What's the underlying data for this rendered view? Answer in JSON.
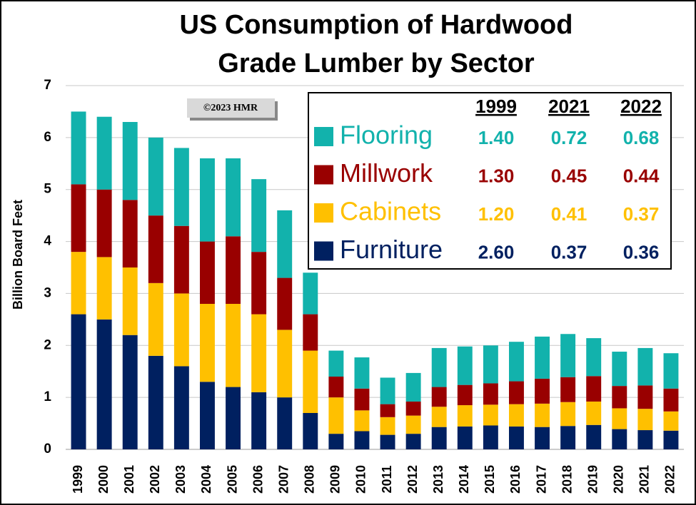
{
  "chart_data": {
    "type": "stacked_bar",
    "title": "US Consumption of Hardwood Grade Lumber by Sector",
    "y_label": "Billion Board Feet",
    "annotation": "©2023 HMR",
    "categories": [
      "1999",
      "2000",
      "2001",
      "2002",
      "2003",
      "2004",
      "2005",
      "2006",
      "2007",
      "2008",
      "2009",
      "2010",
      "2011",
      "2012",
      "2013",
      "2014",
      "2015",
      "2016",
      "2017",
      "2018",
      "2019",
      "2020",
      "2021",
      "2022"
    ],
    "series": [
      {
        "name": "Furniture",
        "color": "#002060",
        "values": [
          2.6,
          2.5,
          2.2,
          1.8,
          1.6,
          1.3,
          1.2,
          1.1,
          1.0,
          0.7,
          0.3,
          0.35,
          0.28,
          0.3,
          0.43,
          0.44,
          0.46,
          0.44,
          0.43,
          0.45,
          0.47,
          0.39,
          0.37,
          0.36
        ],
        "table_values": [
          "2.60",
          "0.37",
          "0.36"
        ]
      },
      {
        "name": "Cabinets",
        "color": "#ffc000",
        "values": [
          1.2,
          1.2,
          1.3,
          1.4,
          1.4,
          1.5,
          1.6,
          1.5,
          1.3,
          1.2,
          0.7,
          0.4,
          0.34,
          0.35,
          0.39,
          0.41,
          0.4,
          0.43,
          0.45,
          0.46,
          0.45,
          0.4,
          0.41,
          0.37
        ],
        "table_values": [
          "1.20",
          "0.41",
          "0.37"
        ]
      },
      {
        "name": "Millwork",
        "color": "#990000",
        "values": [
          1.3,
          1.3,
          1.3,
          1.3,
          1.3,
          1.2,
          1.3,
          1.2,
          1.0,
          0.7,
          0.4,
          0.42,
          0.25,
          0.27,
          0.38,
          0.39,
          0.41,
          0.44,
          0.48,
          0.48,
          0.49,
          0.43,
          0.45,
          0.44
        ],
        "table_values": [
          "1.30",
          "0.45",
          "0.44"
        ]
      },
      {
        "name": "Flooring",
        "color": "#12b2ac",
        "values": [
          1.4,
          1.4,
          1.5,
          1.5,
          1.5,
          1.6,
          1.5,
          1.4,
          1.3,
          0.8,
          0.5,
          0.6,
          0.51,
          0.55,
          0.75,
          0.74,
          0.73,
          0.76,
          0.81,
          0.83,
          0.73,
          0.66,
          0.72,
          0.68
        ],
        "table_values": [
          "1.40",
          "0.72",
          "0.68"
        ]
      }
    ],
    "table_columns": [
      "1999",
      "2021",
      "2022"
    ],
    "ylim": [
      0,
      7
    ],
    "yticks": [
      0,
      1,
      2,
      3,
      4,
      5,
      6,
      7
    ],
    "grid": true
  }
}
